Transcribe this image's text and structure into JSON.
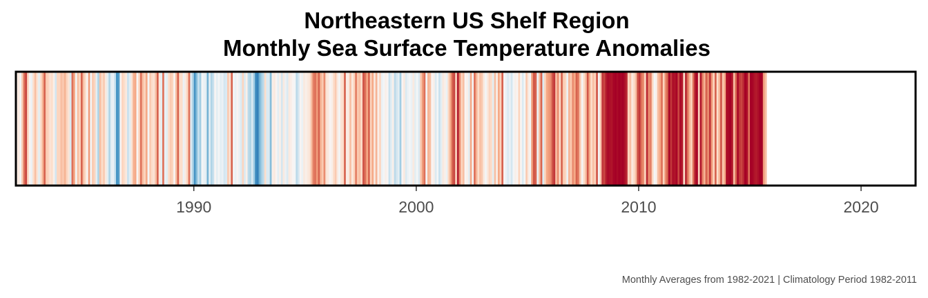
{
  "title": {
    "line1": "Northeastern US Shelf Region",
    "line2": "Monthly Sea Surface Temperature Anomalies"
  },
  "caption": "Monthly Averages from 1982-2021  |  Climatology Period 1982-2011",
  "colors": {
    "scale": [
      "#2166ac",
      "#4393c3",
      "#92c5de",
      "#d1e5f0",
      "#f7f7f7",
      "#fddbc7",
      "#f4a582",
      "#d6604d",
      "#b2182b",
      "#a50026"
    ],
    "frame": "#000000"
  },
  "chart_data": {
    "type": "heatmap",
    "title": "Northeastern US Shelf Region — Monthly Sea Surface Temperature Anomalies",
    "x_start": 1982.0,
    "x_step_months": 1,
    "xlim": [
      1982.0,
      2022.45
    ],
    "x_ticks": [
      "1990",
      "2000",
      "2010",
      "2020"
    ],
    "anomaly_range": [
      -2.2,
      2.2
    ],
    "values": [
      -0.1,
      0.0,
      -0.3,
      0.4,
      1.1,
      1.4,
      0.3,
      -0.2,
      -0.4,
      0.2,
      0.5,
      0.1,
      -0.5,
      0.2,
      0.6,
      1.2,
      0.4,
      0.3,
      0.1,
      0.2,
      -0.1,
      -0.7,
      0.3,
      0.3,
      0.5,
      0.4,
      0.6,
      0.3,
      0.1,
      -0.6,
      1.1,
      0.7,
      -0.3,
      0.5,
      0.3,
      1.2,
      0.5,
      0.2,
      -0.2,
      0.8,
      -0.3,
      0.4,
      0.3,
      -0.5,
      -1.0,
      0.5,
      0.2,
      0.4,
      0.0,
      -0.5,
      -1.0,
      -0.5,
      -0.4,
      -0.8,
      -1.7,
      -1.6,
      -0.2,
      0.3,
      0.2,
      0.0,
      -0.8,
      -0.5,
      0.1,
      0.6,
      0.7,
      -0.2,
      0.3,
      1.1,
      0.5,
      0.3,
      0.7,
      -0.3,
      0.4,
      0.2,
      0.1,
      0.5,
      1.2,
      0.0,
      -0.5,
      1.1,
      -0.4,
      -0.5,
      0.2,
      0.4,
      0.3,
      -0.2,
      0.5,
      1.2,
      0.2,
      0.2,
      -0.4,
      0.0,
      0.3,
      1.1,
      -0.6,
      -1.0,
      -1.7,
      -1.3,
      -0.8,
      -1.1,
      -0.3,
      -0.4,
      -0.5,
      -1.4,
      -0.5,
      -1.0,
      -0.8,
      -0.2,
      -0.5,
      -0.3,
      -0.5,
      -0.4,
      -0.7,
      -0.6,
      0.4,
      0.1,
      1.2,
      -0.3,
      -0.4,
      -0.2,
      -0.4,
      -0.6,
      0.3,
      -0.6,
      -0.1,
      -0.9,
      -1.0,
      -0.6,
      -1.1,
      -1.8,
      -1.9,
      -1.4,
      -1.1,
      -0.9,
      0.2,
      -0.6,
      -0.6,
      -1.3,
      -0.1,
      0.0,
      -0.2,
      -0.5,
      -0.1,
      -0.7,
      0.0,
      -0.4,
      -0.6,
      0.0,
      -0.1,
      -0.2,
      -0.3,
      -0.9,
      -0.7,
      -0.2,
      -0.4,
      0.0,
      -0.1,
      0.0,
      0.1,
      0.5,
      1.0,
      1.1,
      0.8,
      1.2,
      0.6,
      0.4,
      0.9,
      0.1,
      0.0,
      -0.2,
      -0.1,
      0.2,
      0.4,
      0.0,
      -0.3,
      0.1,
      0.2,
      1.2,
      -0.1,
      0.0,
      0.5,
      0.0,
      0.3,
      1.0,
      0.4,
      0.5,
      0.2,
      1.3,
      1.1,
      0.7,
      1.2,
      0.3,
      0.7,
      0.0,
      0.6,
      -0.1,
      0.3,
      -0.4,
      -0.3,
      -0.1,
      -0.2,
      -0.8,
      -0.5,
      -0.1,
      -0.9,
      -0.7,
      -0.5,
      -1.1,
      -0.2,
      0.0,
      -0.6,
      -0.4,
      -0.3,
      -0.4,
      0.0,
      -0.5,
      -0.3,
      -0.6,
      0.4,
      0.8,
      1.1,
      -0.3,
      0.6,
      0.5,
      -0.2,
      -0.1,
      -0.6,
      -0.3,
      -0.8,
      -0.5,
      0.0,
      -0.1,
      -0.4,
      0.3,
      0.7,
      1.2,
      1.4,
      0.3,
      1.7,
      0.9,
      0.3,
      0.5,
      -0.2,
      -0.1,
      -0.5,
      0.7,
      -0.3,
      1.1,
      0.6,
      0.2,
      0.5,
      0.4,
      0.0,
      -0.3,
      0.0,
      0.3,
      0.2,
      -0.5,
      0.5,
      -0.1,
      0.7,
      0.3,
      1.2,
      -0.2,
      -0.4,
      -0.6,
      -0.4,
      -0.7,
      -0.3,
      -0.1,
      -0.2,
      0.3,
      -0.2,
      -0.6,
      -0.3,
      0.4,
      0.0,
      -0.3,
      0.8,
      1.3,
      1.2,
      -0.4,
      0.5,
      1.2,
      -0.6,
      0.3,
      0.7,
      0.8,
      0.9,
      1.3,
      1.5,
      0.5,
      0.9,
      0.2,
      1.2,
      0.4,
      0.3,
      -0.4,
      0.6,
      0.4,
      0.9,
      0.7,
      1.2,
      1.0,
      0.4,
      -0.3,
      0.2,
      0.5,
      1.3,
      0.7,
      0.2,
      0.5,
      0.3,
      1.3,
      -0.3,
      0.4,
      1.5,
      1.4,
      1.7,
      2.0,
      1.9,
      1.8,
      2.1,
      2.2,
      2.0,
      2.3,
      2.1,
      2.2,
      1.9,
      1.6,
      0.3,
      0.5,
      0.0,
      0.2,
      0.5,
      1.3,
      1.5,
      1.1,
      0.9,
      0.3,
      1.6,
      0.9,
      1.0,
      0.3,
      -0.3,
      -0.1,
      0.5,
      0.7,
      1.1,
      0.3,
      0.9,
      1.2,
      2.1,
      1.5,
      1.9,
      1.8,
      2.1,
      1.4,
      2.0,
      1.7,
      0.2,
      1.6,
      1.1,
      0.6,
      0.3,
      1.1,
      1.7,
      2.1,
      0.3,
      1.8,
      1.0,
      0.6,
      1.2,
      0.9,
      1.5,
      0.8,
      0.3,
      1.2,
      0.2,
      0.6,
      1.3,
      0.4,
      0.7,
      1.9,
      2.0,
      2.3,
      1.7,
      0.5,
      1.2,
      2.0,
      1.5,
      1.4,
      1.6,
      2.2,
      1.9,
      1.1,
      2.2,
      2.1,
      1.8,
      1.7,
      1.9,
      2.3,
      2.4,
      0.8,
      0.5
    ]
  }
}
